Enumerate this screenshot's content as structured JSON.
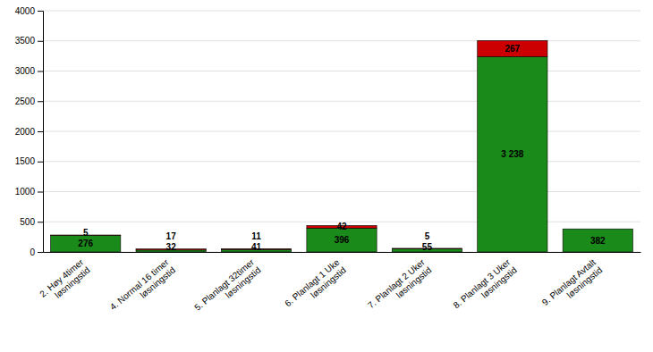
{
  "chart_data": {
    "type": "bar",
    "stacked": true,
    "categories": [
      "2. Høy 4timer\nløsningstid",
      "4. Normal 16 timer\nløsningstid",
      "5. Planlagt 32timer\nløsningstid",
      "6. Planlagt 1 Uke\nløsningstid",
      "7. Planlagt 2 Uker\nløsningstid",
      "8. Planlagt 3 Uker\nløsningstid",
      "9. Planlagt Avtalt\nløsningstid"
    ],
    "series": [
      {
        "color": "#1a8a1a",
        "values": [
          276,
          32,
          41,
          396,
          55,
          3238,
          382
        ],
        "value_labels": [
          "276",
          "32",
          "41",
          "396",
          "55",
          "3 238",
          "382"
        ]
      },
      {
        "color": "#cc0000",
        "values": [
          5,
          17,
          11,
          42,
          5,
          267,
          0
        ]
      }
    ],
    "data_labels": true,
    "ylim": [
      0,
      4000
    ],
    "yticks": [
      0,
      500,
      1000,
      1500,
      2000,
      2500,
      3000,
      3500,
      4000
    ],
    "grid": true
  }
}
